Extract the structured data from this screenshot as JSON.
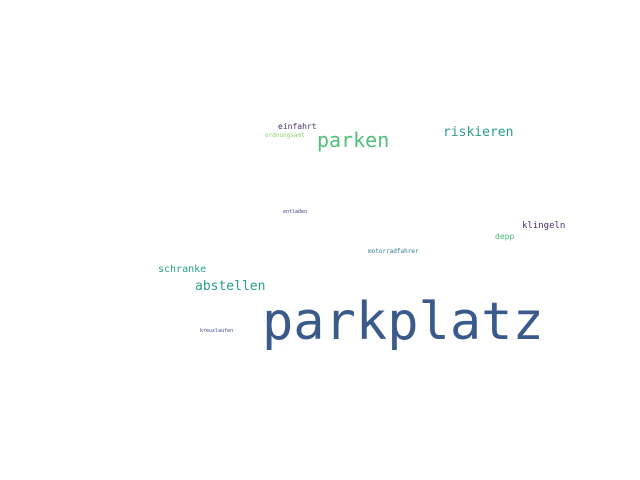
{
  "word_cloud": {
    "words": [
      {
        "text": "parkplatz",
        "color": "#3b5a8c"
      },
      {
        "text": "parken",
        "color": "#4fc07a"
      },
      {
        "text": "riskieren",
        "color": "#2a9d8f"
      },
      {
        "text": "abstellen",
        "color": "#27a08d"
      },
      {
        "text": "schranke",
        "color": "#2aa18c"
      },
      {
        "text": "einfahrt",
        "color": "#482f6e"
      },
      {
        "text": "ordnungsamt",
        "color": "#8ed46a"
      },
      {
        "text": "klingeln",
        "color": "#4b2a76"
      },
      {
        "text": "depp",
        "color": "#3cbb76"
      },
      {
        "text": "motorradfahrer",
        "color": "#2b7f8e"
      },
      {
        "text": "entladen",
        "color": "#3a3f7d"
      },
      {
        "text": "kreuzlaufen",
        "color": "#3d4a88"
      }
    ]
  }
}
